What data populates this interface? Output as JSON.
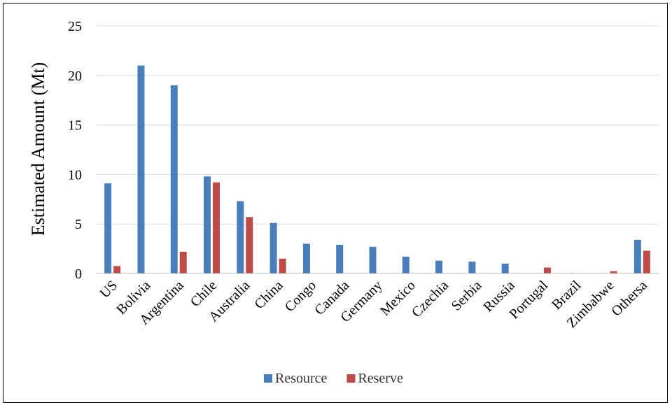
{
  "chart_data": {
    "type": "bar",
    "title": "",
    "xlabel": "",
    "ylabel": "Estimated Amount (Mt)",
    "ylim": [
      0,
      25
    ],
    "yticks": [
      0,
      5,
      10,
      15,
      20,
      25
    ],
    "grid": true,
    "legend_position": "bottom",
    "categories": [
      "US",
      "Bolivia",
      "Argentina",
      "Chile",
      "Australia",
      "China",
      "Congo",
      "Canada",
      "Germany",
      "Mexico",
      "Czechia",
      "Serbia",
      "Russia",
      "Portugal",
      "Brazil",
      "Zimbabwe",
      "Othersa"
    ],
    "series": [
      {
        "name": "Resource",
        "color": "#4a7ebb",
        "values": [
          9.1,
          21,
          19,
          9.8,
          7.3,
          5.1,
          3.0,
          2.9,
          2.7,
          1.7,
          1.3,
          1.2,
          1.0,
          0,
          0.05,
          0,
          3.4
        ]
      },
      {
        "name": "Reserve",
        "color": "#be4b48",
        "values": [
          0.75,
          0,
          2.2,
          9.2,
          5.7,
          1.5,
          0,
          0,
          0,
          0,
          0,
          0,
          0,
          0.6,
          0,
          0.23,
          2.3
        ]
      }
    ]
  }
}
